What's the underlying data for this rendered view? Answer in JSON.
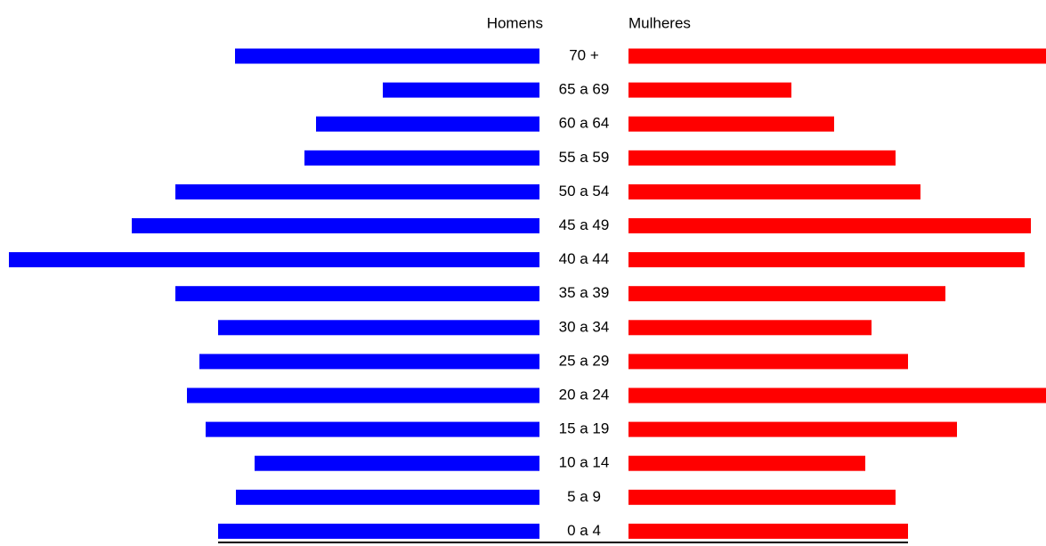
{
  "chart_data": {
    "type": "pyramid",
    "categories": [
      "70 +",
      "65 a 69",
      "60 a 64",
      "55 a 59",
      "50 a 54",
      "45 a 49",
      "40 a 44",
      "35 a 39",
      "30 a 34",
      "25 a 29",
      "20 a 24",
      "15 a 19",
      "10 a 14",
      "5 a 9",
      "0 a 4"
    ],
    "series": [
      {
        "name": "Homens",
        "color": "#0000ff",
        "values": [
          342,
          176,
          251,
          264,
          409,
          458,
          596,
          409,
          361,
          382,
          396,
          375,
          320,
          341,
          361
        ]
      },
      {
        "name": "Mulheres",
        "color": "#ff0000",
        "values": [
          469,
          183,
          231,
          300,
          328,
          452,
          445,
          356,
          273,
          314,
          469,
          369,
          266,
          300,
          314
        ]
      }
    ]
  }
}
